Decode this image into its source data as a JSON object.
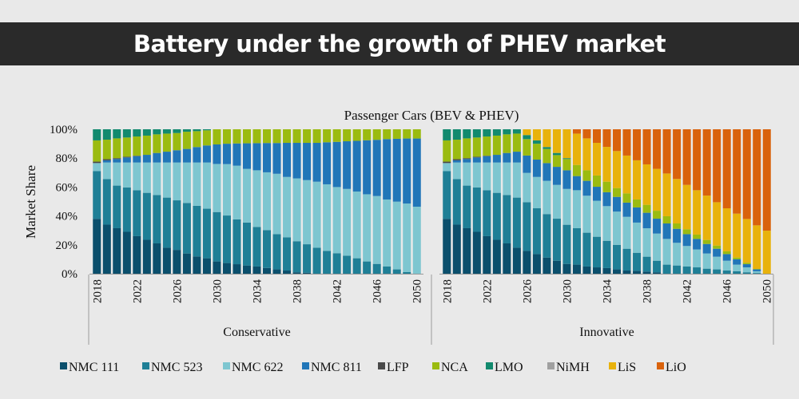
{
  "banner_title": "Battery under the growth of PHEV market",
  "chart_data": {
    "type": "stacked-bar",
    "title": "Passenger Cars (BEV & PHEV)",
    "ylabel": "Market Share",
    "ylim": [
      0,
      100
    ],
    "yticks": [
      "0%",
      "20%",
      "40%",
      "60%",
      "80%",
      "100%"
    ],
    "xtick_labels": [
      "2018",
      "2022",
      "2026",
      "2030",
      "2034",
      "2038",
      "2042",
      "2046",
      "2050"
    ],
    "legend_position": "bottom",
    "series_names": [
      "NMC 111",
      "NMC 523",
      "NMC 622",
      "NMC 811",
      "LFP",
      "NCA",
      "LMO",
      "NiMH",
      "LiS",
      "LiO"
    ],
    "colors": [
      "#0b4f6c",
      "#1f7f96",
      "#7ec6d0",
      "#2176b8",
      "#4a4a4a",
      "#9bbb10",
      "#128a6e",
      "#a0a0a0",
      "#e8b20c",
      "#d9620c"
    ],
    "years": [
      2018,
      2019,
      2020,
      2021,
      2022,
      2023,
      2024,
      2025,
      2026,
      2027,
      2028,
      2029,
      2030,
      2031,
      2032,
      2033,
      2034,
      2035,
      2036,
      2037,
      2038,
      2039,
      2040,
      2041,
      2042,
      2043,
      2044,
      2045,
      2046,
      2047,
      2048,
      2049,
      2050
    ],
    "panels": [
      {
        "name": "Conservative",
        "series": [
          {
            "name": "NMC 111",
            "values": [
              38,
              34,
              31.5,
              29,
              26,
              23.5,
              21,
              18,
              16.5,
              14,
              12,
              10.7,
              8.5,
              7.4,
              6.6,
              5.7,
              5,
              4,
              3,
              2.2,
              1,
              0.7,
              0,
              0,
              0,
              0,
              0,
              0,
              0,
              0,
              0,
              0,
              0
            ]
          },
          {
            "name": "NMC 523",
            "values": [
              33,
              31.5,
              29.5,
              30.7,
              31.8,
              32.5,
              33.5,
              34.7,
              34.3,
              35,
              35,
              34.3,
              34.2,
              32.9,
              31,
              29.7,
              27.4,
              26.2,
              24.4,
              23,
              21.5,
              19.7,
              18,
              15.8,
              14.2,
              12.5,
              10.7,
              8.5,
              6.8,
              5,
              3,
              1.1,
              0
            ]
          },
          {
            "name": "NMC 622",
            "values": [
              5.6,
              11.5,
              16,
              17.3,
              19.2,
              21,
              22.5,
              24.3,
              26.2,
              28,
              30,
              32,
              33.3,
              35.6,
              37.2,
              37.2,
              39.2,
              40,
              41.8,
              41.8,
              43.5,
              44.4,
              45.7,
              46.1,
              45.8,
              46.2,
              46.2,
              46.5,
              47,
              46.4,
              46.9,
              47.5,
              46.4
            ]
          },
          {
            "name": "NMC 811",
            "values": [
              0,
              1.5,
              2.4,
              3.5,
              4.4,
              5.3,
              6.6,
              7.5,
              8.5,
              9.4,
              10.7,
              11.8,
              13.5,
              14.1,
              15.4,
              17.7,
              18.8,
              20.3,
              21.3,
              23.6,
              24.6,
              25.8,
              26.9,
              29.1,
              31.3,
              33,
              35.1,
              37.4,
              38.9,
              41.8,
              43.5,
              45,
              47.2
            ]
          },
          {
            "name": "LFP",
            "values": [
              1,
              0.8,
              0.6,
              0.5,
              0.3,
              0,
              0,
              0,
              0,
              0,
              0,
              0,
              0,
              0,
              0,
              0,
              0,
              0,
              0,
              0,
              0,
              0,
              0,
              0,
              0,
              0,
              0,
              0,
              0,
              0,
              0,
              0,
              0
            ]
          },
          {
            "name": "NCA",
            "values": [
              14.7,
              13.5,
              13.7,
              13.3,
              13.3,
              13.3,
              12.9,
              12.5,
              11.9,
              11.9,
              11,
              10.5,
              10.5,
              10,
              9.8,
              9.7,
              9.6,
              9.5,
              9.5,
              9.4,
              9.4,
              9.4,
              9.4,
              9,
              8.7,
              8.3,
              8,
              7.6,
              7.3,
              6.8,
              6.6,
              6.4,
              6.4
            ]
          },
          {
            "name": "LMO",
            "values": [
              7.7,
              7.2,
              6.3,
              5.7,
              5,
              4.4,
              3.5,
              3,
              2.6,
              1.7,
              1.3,
              0.7,
              0,
              0,
              0,
              0,
              0,
              0,
              0,
              0,
              0,
              0,
              0,
              0,
              0,
              0,
              0,
              0,
              0,
              0,
              0,
              0,
              0
            ]
          },
          {
            "name": "NiMH",
            "values": [
              0,
              0,
              0,
              0,
              0,
              0,
              0,
              0,
              0,
              0,
              0,
              0,
              0,
              0,
              0,
              0,
              0,
              0,
              0,
              0,
              0,
              0,
              0,
              0,
              0,
              0,
              0,
              0,
              0,
              0,
              0,
              0,
              0
            ]
          },
          {
            "name": "LiS",
            "values": [
              0,
              0,
              0,
              0,
              0,
              0,
              0,
              0,
              0,
              0,
              0,
              0,
              0,
              0,
              0,
              0,
              0,
              0,
              0,
              0,
              0,
              0,
              0,
              0,
              0,
              0,
              0,
              0,
              0,
              0,
              0,
              0,
              0
            ]
          },
          {
            "name": "LiO",
            "values": [
              0,
              0,
              0,
              0,
              0,
              0,
              0,
              0,
              0,
              0,
              0,
              0,
              0,
              0,
              0,
              0,
              0,
              0,
              0,
              0,
              0,
              0,
              0,
              0,
              0,
              0,
              0,
              0,
              0,
              0,
              0,
              0,
              0
            ]
          }
        ]
      },
      {
        "name": "Innovative",
        "series": [
          {
            "name": "NMC 111",
            "values": [
              38,
              34,
              31.5,
              29,
              26,
              23.5,
              21,
              18,
              15.8,
              13.6,
              11.2,
              9,
              6.8,
              6.3,
              5,
              4.4,
              3.9,
              3,
              2.2,
              2,
              1.5,
              1,
              0,
              0,
              0,
              0,
              0,
              0,
              0,
              0,
              0,
              0,
              0
            ]
          },
          {
            "name": "NMC 523",
            "values": [
              33,
              31.5,
              29.5,
              30.7,
              31.8,
              32.5,
              33.5,
              34.7,
              33.7,
              31.7,
              30.1,
              29.1,
              27.1,
              25.2,
              23.4,
              21.2,
              18.9,
              17,
              15.1,
              12.5,
              10.3,
              8,
              6.3,
              5.7,
              5,
              4.4,
              3.5,
              3,
              2.2,
              1.7,
              1,
              0.5,
              0
            ]
          },
          {
            "name": "NMC 622",
            "values": [
              5.6,
              11.5,
              16,
              17.3,
              19.2,
              21,
              22.5,
              24.3,
              20.3,
              21.7,
              23,
              23.4,
              24.8,
              26.3,
              25.6,
              24.9,
              24,
              23,
              22.1,
              20.9,
              19.7,
              18.8,
              17.8,
              15.7,
              14.2,
              12.4,
              10.5,
              8.8,
              6.8,
              4.6,
              3.4,
              1.2,
              0
            ]
          },
          {
            "name": "NMC 811",
            "values": [
              0,
              1.5,
              2.4,
              3.5,
              4.4,
              5.3,
              6.6,
              7.5,
              12,
              12,
              12.3,
              12.5,
              12.9,
              9.8,
              10.3,
              9.7,
              9.6,
              10.2,
              9.8,
              10.5,
              10.7,
              10.3,
              10.7,
              9.7,
              8.2,
              7.3,
              6.6,
              5.5,
              4.6,
              3.7,
              2.2,
              1.3,
              0
            ]
          },
          {
            "name": "LFP",
            "values": [
              1,
              0.8,
              0.6,
              0.5,
              0.3,
              0,
              0,
              0,
              0,
              0,
              0,
              0,
              0,
              0,
              0,
              0,
              0,
              0,
              0,
              0,
              0,
              0,
              0,
              0,
              0,
              0,
              0,
              0,
              0,
              0,
              0,
              0,
              0
            ]
          },
          {
            "name": "NCA",
            "values": [
              14.7,
              13.5,
              13.7,
              13.3,
              13.3,
              13.3,
              12.9,
              12.5,
              11.4,
              11,
              9.8,
              8.1,
              7.8,
              7.7,
              7.3,
              7.8,
              7.3,
              6.1,
              6.4,
              5.5,
              5.5,
              5.5,
              5,
              3.7,
              3.4,
              3,
              2.8,
              2.2,
              1.9,
              1.2,
              1,
              0.3,
              0
            ]
          },
          {
            "name": "LMO",
            "values": [
              7.7,
              7.2,
              6.3,
              5.7,
              5,
              4.4,
              3.5,
              3,
              2.8,
              2.3,
              1.3,
              1.5,
              0.6,
              0,
              0,
              0,
              0,
              0,
              0,
              0,
              0,
              0,
              0,
              0,
              0,
              0,
              0,
              0,
              0,
              0,
              0,
              0,
              0
            ]
          },
          {
            "name": "NiMH",
            "values": [
              0,
              0,
              0,
              0,
              0,
              0,
              0,
              0,
              0,
              0,
              0,
              0,
              0,
              0,
              0,
              0,
              0,
              0,
              0,
              0,
              0,
              0,
              0,
              0,
              0,
              0,
              0,
              0,
              0,
              0,
              0,
              0,
              0
            ]
          },
          {
            "name": "LiS",
            "values": [
              0,
              0,
              0,
              0,
              0,
              0,
              0,
              0,
              4,
              7.7,
              12.3,
              16.4,
              20,
              21.7,
              22.1,
              22.6,
              24.1,
              25.6,
              26.2,
              27.1,
              28,
              29,
              29.6,
              30.8,
              30.7,
              30.7,
              30.7,
              30,
              29.8,
              30.4,
              30.3,
              30.2,
              29.8
            ]
          },
          {
            "name": "LiO",
            "values": [
              0,
              0,
              0,
              0,
              0,
              0,
              0,
              0,
              0,
              0,
              0,
              0,
              0,
              3,
              6.3,
              9.4,
              12.2,
              15.1,
              18.2,
              21.5,
              24.3,
              27.4,
              30.6,
              34.4,
              38.5,
              42.2,
              45.9,
              50.5,
              54.7,
              58.4,
              62.1,
              66.5,
              70.2
            ]
          }
        ]
      }
    ]
  }
}
